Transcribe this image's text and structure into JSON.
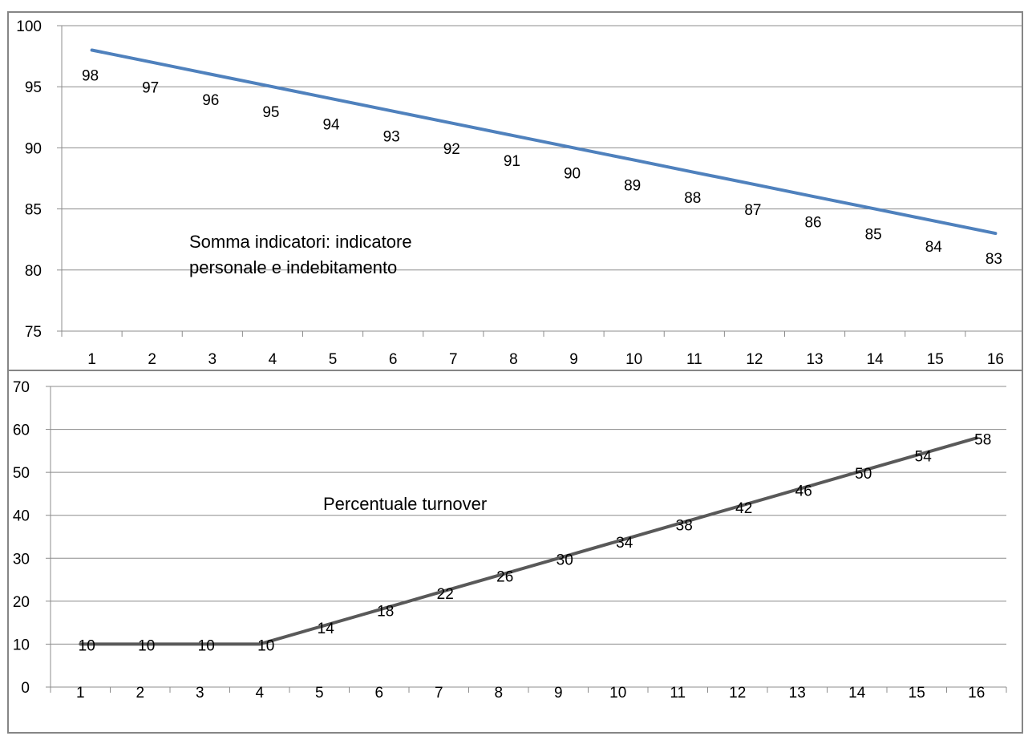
{
  "chart_data": [
    {
      "type": "line",
      "title": "",
      "xlabel": "",
      "ylabel": "",
      "categories": [
        "1",
        "2",
        "3",
        "4",
        "5",
        "6",
        "7",
        "8",
        "9",
        "10",
        "11",
        "12",
        "13",
        "14",
        "15",
        "16"
      ],
      "series": [
        {
          "values": [
            98,
            97,
            96,
            95,
            94,
            93,
            92,
            91,
            90,
            89,
            88,
            87,
            86,
            85,
            84,
            83
          ],
          "color": "#4F81BD"
        }
      ],
      "ylim": [
        75,
        100
      ],
      "yticks": [
        75,
        80,
        85,
        90,
        95,
        100
      ],
      "grid": true,
      "annotation_lines": [
        "Somma indicatori: indicatore",
        "personale e indebitamento"
      ]
    },
    {
      "type": "line",
      "title": "",
      "xlabel": "",
      "ylabel": "",
      "categories": [
        "1",
        "2",
        "3",
        "4",
        "5",
        "6",
        "7",
        "8",
        "9",
        "10",
        "11",
        "12",
        "13",
        "14",
        "15",
        "16"
      ],
      "series": [
        {
          "values": [
            10,
            10,
            10,
            10,
            14,
            18,
            22,
            26,
            30,
            34,
            38,
            42,
            46,
            50,
            54,
            58
          ],
          "color": "#595959"
        }
      ],
      "ylim": [
        0,
        70
      ],
      "yticks": [
        0,
        10,
        20,
        30,
        40,
        50,
        60,
        70
      ],
      "grid": true,
      "annotation_lines": [
        "Percentuale turnover"
      ]
    }
  ]
}
